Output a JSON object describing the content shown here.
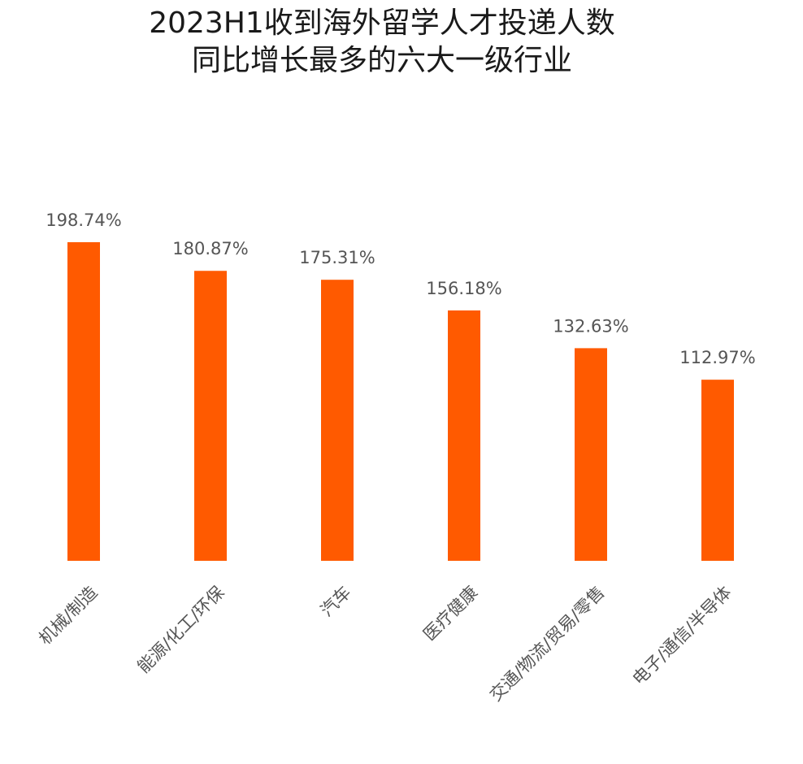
{
  "chart_data": {
    "type": "bar",
    "title_line1": "2023H1收到海外留学人才投递人数",
    "title_line2": "同比增长最多的六大一级行业",
    "categories": [
      "机械/制造",
      "能源/化工/环保",
      "汽车",
      "医疗健康",
      "交通/物流/贸易/零售",
      "电子/通信/半导体"
    ],
    "values": [
      198.74,
      180.87,
      175.31,
      156.18,
      132.63,
      112.97
    ],
    "value_labels": [
      "198.74%",
      "180.87%",
      "175.31%",
      "156.18%",
      "132.63%",
      "112.97%"
    ],
    "grid": false,
    "legend": "none",
    "bar_color": "#ff5a00"
  }
}
